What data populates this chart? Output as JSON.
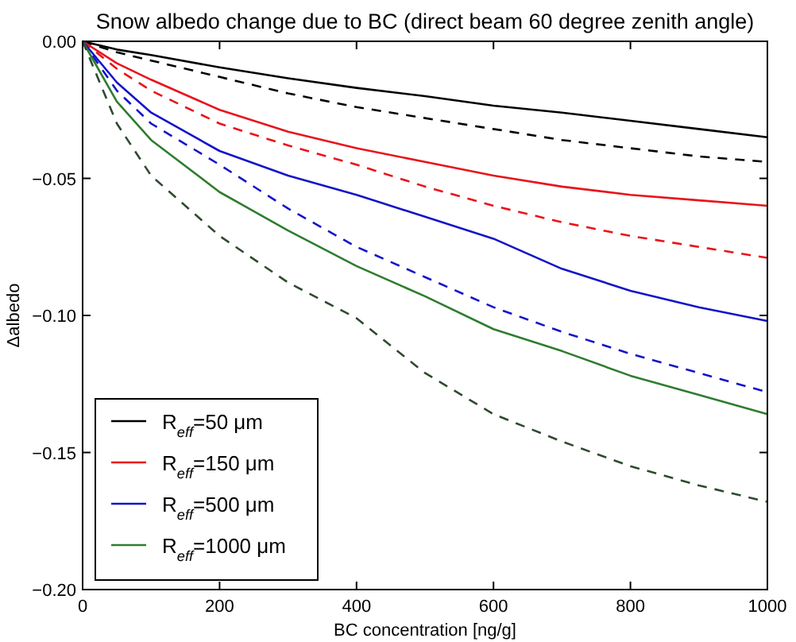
{
  "chart_data": {
    "type": "line",
    "title": "Snow albedo change due to BC (direct beam 60 degree zenith angle)",
    "xlabel": "BC concentration [ng/g]",
    "ylabel": "Δalbedo",
    "x": [
      0,
      50,
      100,
      200,
      300,
      400,
      500,
      600,
      700,
      800,
      900,
      1000
    ],
    "xlim": [
      0,
      1000
    ],
    "xticks": [
      0,
      200,
      400,
      600,
      800,
      1000
    ],
    "ylim": [
      -0.2,
      0
    ],
    "yticks": [
      {
        "value": -0.2,
        "label": "−0.20"
      },
      {
        "value": -0.15,
        "label": "−0.15"
      },
      {
        "value": -0.1,
        "label": "−0.10"
      },
      {
        "value": -0.05,
        "label": "−0.05"
      },
      {
        "value": 0,
        "label": "0.00"
      }
    ],
    "grid": false,
    "legend": "bottom left",
    "series": [
      {
        "name": "R$_{eff}$=50 μm",
        "color": "#000000",
        "line_style": "solid",
        "values": [
          0,
          -0.003,
          -0.005,
          -0.0095,
          -0.0135,
          -0.017,
          -0.02,
          -0.0235,
          -0.026,
          -0.029,
          -0.032,
          -0.035
        ]
      },
      {
        "color": "#000000",
        "line_style": "dashed",
        "values": [
          0,
          -0.004,
          -0.007,
          -0.013,
          -0.019,
          -0.024,
          -0.028,
          -0.032,
          -0.036,
          -0.039,
          -0.042,
          -0.044
        ]
      },
      {
        "name": "R$_{eff}$=150 μm",
        "color": "#e8141c",
        "line_style": "solid",
        "values": [
          0,
          -0.008,
          -0.014,
          -0.025,
          -0.033,
          -0.039,
          -0.044,
          -0.049,
          -0.053,
          -0.056,
          -0.058,
          -0.06
        ]
      },
      {
        "color": "#e8141c",
        "line_style": "dashed",
        "values": [
          0,
          -0.01,
          -0.018,
          -0.03,
          -0.038,
          -0.045,
          -0.053,
          -0.06,
          -0.066,
          -0.071,
          -0.075,
          -0.079
        ]
      },
      {
        "name": "R$_{eff}$=500 μm",
        "color": "#1414c8",
        "line_style": "solid",
        "values": [
          0,
          -0.015,
          -0.026,
          -0.04,
          -0.049,
          -0.056,
          -0.064,
          -0.072,
          -0.083,
          -0.091,
          -0.097,
          -0.102
        ]
      },
      {
        "color": "#1414c8",
        "line_style": "dashed",
        "values": [
          0,
          -0.018,
          -0.03,
          -0.045,
          -0.061,
          -0.075,
          -0.086,
          -0.097,
          -0.106,
          -0.114,
          -0.121,
          -0.128
        ]
      },
      {
        "name": "R$_{eff}$=1000 μm",
        "color": "#2e7d2e",
        "line_style": "solid",
        "values": [
          0,
          -0.022,
          -0.036,
          -0.055,
          -0.069,
          -0.082,
          -0.093,
          -0.105,
          -0.113,
          -0.122,
          -0.129,
          -0.136
        ]
      },
      {
        "color": "#2f4a2f",
        "line_style": "dashed",
        "values": [
          0,
          -0.03,
          -0.049,
          -0.071,
          -0.088,
          -0.101,
          -0.121,
          -0.136,
          -0.146,
          -0.155,
          -0.162,
          -0.168
        ]
      }
    ]
  }
}
